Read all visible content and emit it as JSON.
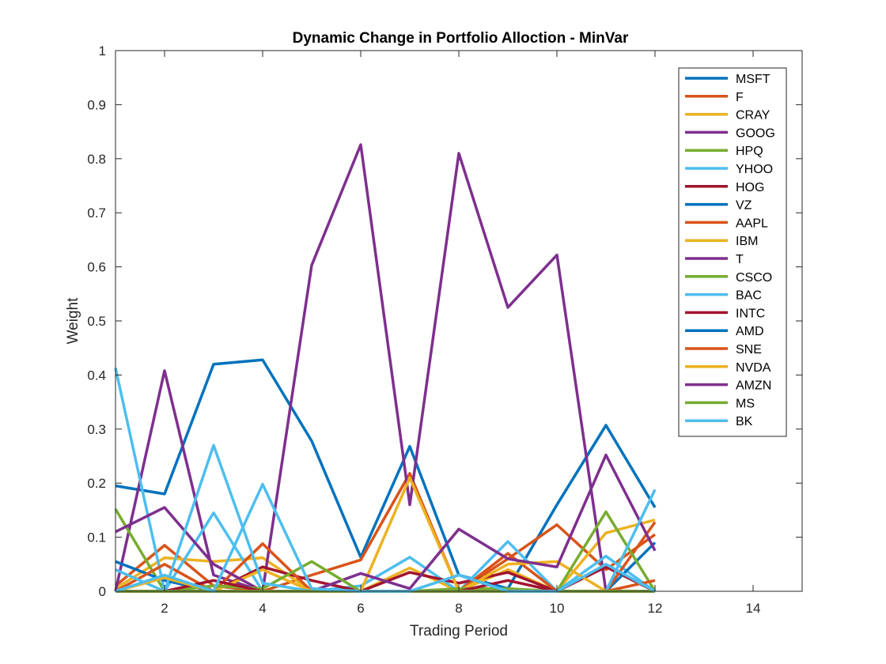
{
  "chart_data": {
    "type": "line",
    "title": "Dynamic Change in Portfolio Alloction - MinVar",
    "xlabel": "Trading Period",
    "ylabel": "Weight",
    "xlim": [
      1,
      15
    ],
    "ylim": [
      0,
      1
    ],
    "xticks": [
      2,
      4,
      6,
      8,
      10,
      12,
      14
    ],
    "yticks": [
      0,
      0.1,
      0.2,
      0.3,
      0.4,
      0.5,
      0.6,
      0.7,
      0.8,
      0.9,
      1
    ],
    "legend_position": "top-right",
    "x": [
      1,
      2,
      3,
      4,
      5,
      6,
      7,
      8,
      9,
      10,
      11,
      12
    ],
    "series": [
      {
        "name": "MSFT",
        "color": "#0072BD",
        "values": [
          0.195,
          0.18,
          0.42,
          0.428,
          0.278,
          0.063,
          0.268,
          0.03,
          0.005,
          0.16,
          0.307,
          0.155
        ]
      },
      {
        "name": "F",
        "color": "#D95319",
        "values": [
          0.01,
          0.085,
          0.01,
          0.0,
          0.03,
          0.058,
          0.218,
          0.0,
          0.06,
          0.123,
          0.04,
          0.105
        ]
      },
      {
        "name": "CRAY",
        "color": "#EDB120",
        "values": [
          0.005,
          0.062,
          0.055,
          0.062,
          0.0,
          0.0,
          0.043,
          0.0,
          0.04,
          0.0,
          0.108,
          0.132
        ]
      },
      {
        "name": "GOOG",
        "color": "#7E2F8E",
        "values": [
          0.0,
          0.408,
          0.03,
          0.0,
          0.603,
          0.826,
          0.16,
          0.81,
          0.525,
          0.622,
          0.0,
          0.0
        ]
      },
      {
        "name": "HPQ",
        "color": "#77AC30",
        "values": [
          0.152,
          0.0,
          0.0,
          0.0,
          0.0,
          0.0,
          0.0,
          0.0,
          0.0,
          0.0,
          0.0,
          0.0
        ]
      },
      {
        "name": "YHOO",
        "color": "#4DBEEE",
        "values": [
          0.413,
          0.0,
          0.145,
          0.0,
          0.0,
          0.01,
          0.063,
          0.0,
          0.092,
          0.0,
          0.065,
          0.0
        ]
      },
      {
        "name": "HOG",
        "color": "#A2142F",
        "values": [
          0.0,
          0.0,
          0.0,
          0.045,
          0.02,
          0.0,
          0.035,
          0.015,
          0.035,
          0.0,
          0.045,
          0.0
        ]
      },
      {
        "name": "VZ",
        "color": "#0072BD",
        "values": [
          0.055,
          0.02,
          0.0,
          0.0,
          0.0,
          0.0,
          0.0,
          0.0,
          0.0,
          0.0,
          0.0,
          0.09
        ]
      },
      {
        "name": "AAPL",
        "color": "#D95319",
        "values": [
          0.0,
          0.05,
          0.0,
          0.088,
          0.0,
          0.0,
          0.0,
          0.0,
          0.07,
          0.0,
          0.0,
          0.128
        ]
      },
      {
        "name": "IBM",
        "color": "#EDB120",
        "values": [
          0.0,
          0.0,
          0.0,
          0.04,
          0.0,
          0.0,
          0.21,
          0.0,
          0.05,
          0.055,
          0.0,
          0.0
        ]
      },
      {
        "name": "T",
        "color": "#7E2F8E",
        "values": [
          0.11,
          0.155,
          0.05,
          0.0,
          0.0,
          0.033,
          0.005,
          0.115,
          0.06,
          0.045,
          0.252,
          0.075
        ]
      },
      {
        "name": "CSCO",
        "color": "#77AC30",
        "values": [
          0.0,
          0.0,
          0.01,
          0.005,
          0.055,
          0.0,
          0.0,
          0.005,
          0.005,
          0.0,
          0.147,
          0.0
        ]
      },
      {
        "name": "BAC",
        "color": "#4DBEEE",
        "values": [
          0.04,
          0.0,
          0.27,
          0.015,
          0.0,
          0.0,
          0.0,
          0.03,
          0.0,
          0.0,
          0.0,
          0.188
        ]
      },
      {
        "name": "INTC",
        "color": "#A2142F",
        "values": [
          0.0,
          0.0,
          0.02,
          0.0,
          0.0,
          0.0,
          0.0,
          0.0,
          0.02,
          0.0,
          0.0,
          0.0
        ]
      },
      {
        "name": "AMD",
        "color": "#0072BD",
        "values": [
          0.0,
          0.0,
          0.0,
          0.0,
          0.0,
          0.0,
          0.0,
          0.0,
          0.0,
          0.0,
          0.0,
          0.0
        ]
      },
      {
        "name": "SNE",
        "color": "#D95319",
        "values": [
          0.0,
          0.0,
          0.0,
          0.0,
          0.0,
          0.0,
          0.0,
          0.0,
          0.0,
          0.0,
          0.0,
          0.02
        ]
      },
      {
        "name": "NVDA",
        "color": "#EDB120",
        "values": [
          0.0,
          0.025,
          0.0,
          0.0,
          0.0,
          0.0,
          0.0,
          0.0,
          0.0,
          0.0,
          0.0,
          0.0
        ]
      },
      {
        "name": "AMZN",
        "color": "#7E2F8E",
        "values": [
          0.0,
          0.0,
          0.0,
          0.0,
          0.0,
          0.0,
          0.0,
          0.0,
          0.0,
          0.0,
          0.0,
          0.0
        ]
      },
      {
        "name": "MS",
        "color": "#77AC30",
        "values": [
          0.0,
          0.0,
          0.0,
          0.0,
          0.0,
          0.0,
          0.0,
          0.0,
          0.0,
          0.0,
          0.0,
          0.0
        ]
      },
      {
        "name": "BK",
        "color": "#4DBEEE",
        "values": [
          0.0,
          0.03,
          0.0,
          0.198,
          0.005,
          0.0,
          0.0,
          0.03,
          0.0,
          0.0,
          0.05,
          0.0
        ]
      }
    ]
  }
}
